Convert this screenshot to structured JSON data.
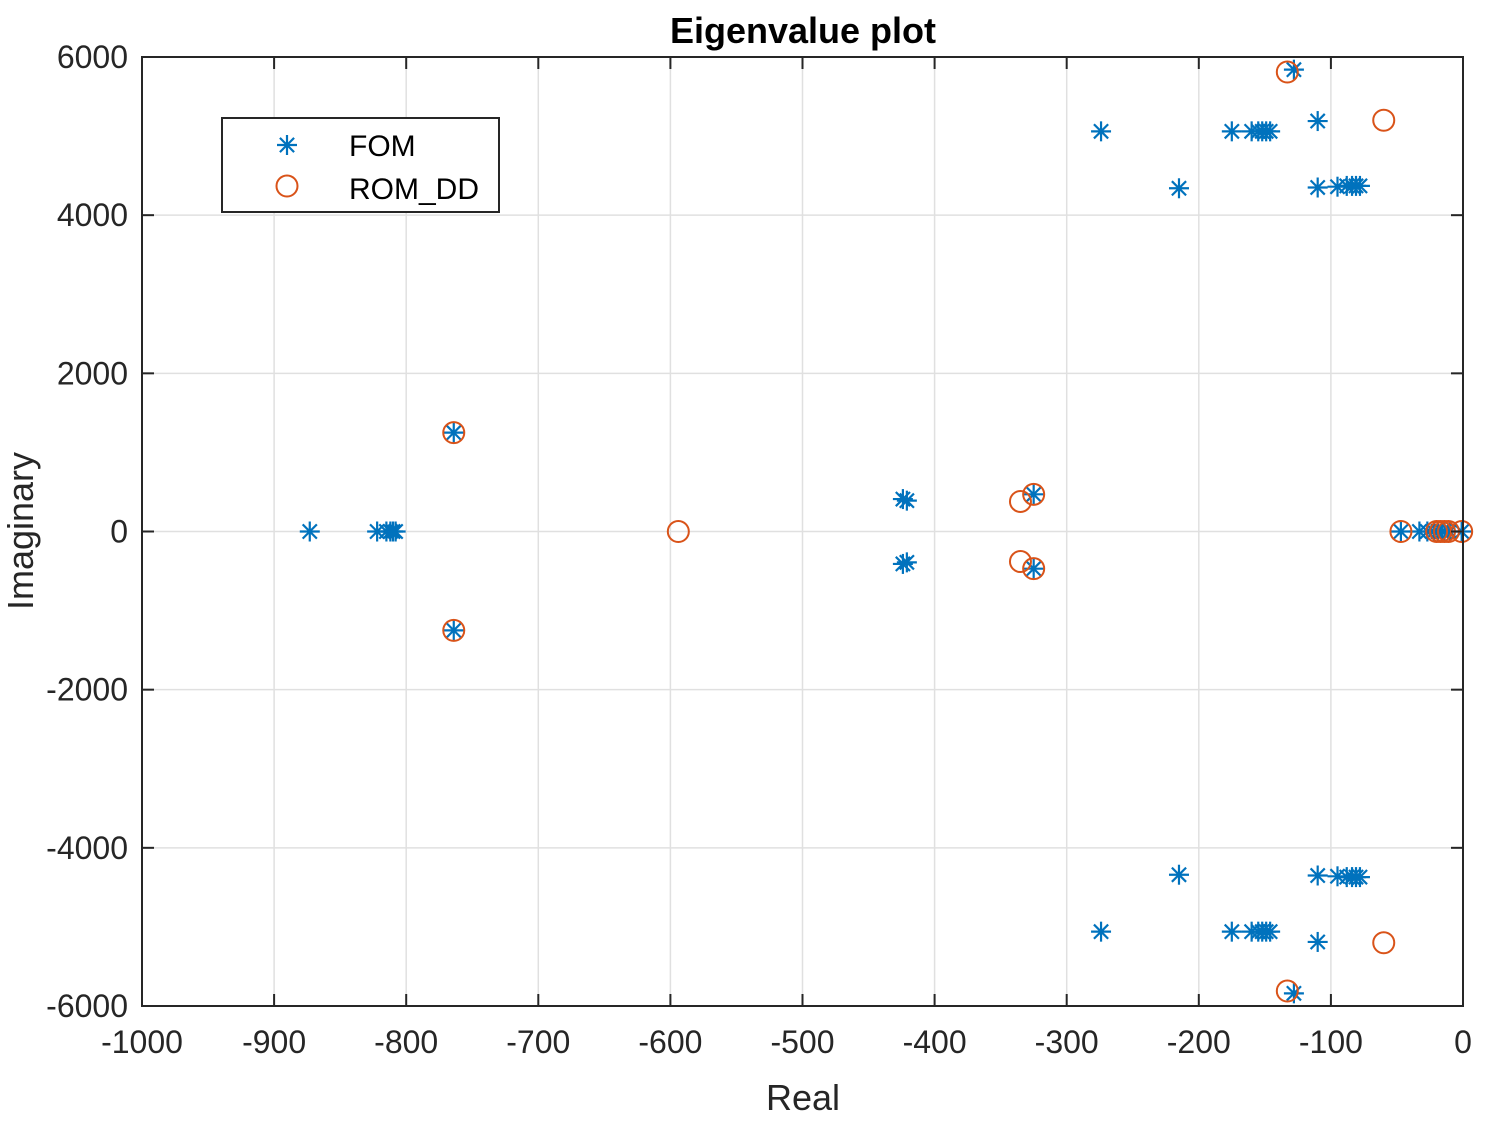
{
  "chart_data": {
    "type": "scatter",
    "title": "Eigenvalue plot",
    "xlabel": "Real",
    "ylabel": "Imaginary",
    "xlim": [
      -1000,
      0
    ],
    "ylim": [
      -6000,
      6000
    ],
    "xticks": [
      -1000,
      -900,
      -800,
      -700,
      -600,
      -500,
      -400,
      -300,
      -200,
      -100,
      0
    ],
    "yticks": [
      -6000,
      -4000,
      -2000,
      0,
      2000,
      4000,
      6000
    ],
    "grid": true,
    "legend_position": "top-left",
    "colors": {
      "FOM": "#0072BD",
      "ROM_DD": "#D95319",
      "grid": "#E0E0E0",
      "axis": "#262626"
    },
    "series": [
      {
        "name": "FOM",
        "marker": "asterisk",
        "points": [
          [
            -873,
            0
          ],
          [
            -822,
            0
          ],
          [
            -815,
            0
          ],
          [
            -812,
            0
          ],
          [
            -810,
            0
          ],
          [
            -808,
            0
          ],
          [
            -764,
            1250
          ],
          [
            -764,
            -1250
          ],
          [
            -424,
            410
          ],
          [
            -421,
            390
          ],
          [
            -424,
            -410
          ],
          [
            -421,
            -390
          ],
          [
            -325,
            470
          ],
          [
            -325,
            -470
          ],
          [
            -274,
            5060
          ],
          [
            -274,
            -5060
          ],
          [
            -215,
            4340
          ],
          [
            -215,
            -4340
          ],
          [
            -175,
            5060
          ],
          [
            -160,
            5060
          ],
          [
            -155,
            5060
          ],
          [
            -152,
            5060
          ],
          [
            -149,
            5060
          ],
          [
            -146,
            5060
          ],
          [
            -175,
            -5060
          ],
          [
            -160,
            -5060
          ],
          [
            -155,
            -5060
          ],
          [
            -152,
            -5060
          ],
          [
            -149,
            -5060
          ],
          [
            -146,
            -5060
          ],
          [
            -128,
            5840
          ],
          [
            -128,
            -5840
          ],
          [
            -110,
            5190
          ],
          [
            -110,
            -5190
          ],
          [
            -110,
            4350
          ],
          [
            -95,
            4360
          ],
          [
            -88,
            4370
          ],
          [
            -84,
            4370
          ],
          [
            -81,
            4370
          ],
          [
            -78,
            4370
          ],
          [
            -110,
            -4350
          ],
          [
            -95,
            -4360
          ],
          [
            -88,
            -4370
          ],
          [
            -84,
            -4370
          ],
          [
            -81,
            -4370
          ],
          [
            -78,
            -4370
          ],
          [
            -47,
            0
          ],
          [
            -33,
            0
          ],
          [
            -27,
            0
          ],
          [
            -22,
            0
          ],
          [
            -19,
            0
          ],
          [
            -16,
            0
          ],
          [
            -14,
            0
          ],
          [
            -10,
            0
          ],
          [
            -1,
            0
          ]
        ]
      },
      {
        "name": "ROM_DD",
        "marker": "circle",
        "points": [
          [
            -764,
            1250
          ],
          [
            -764,
            -1250
          ],
          [
            -594,
            0
          ],
          [
            -335,
            380
          ],
          [
            -335,
            -380
          ],
          [
            -325,
            470
          ],
          [
            -325,
            -470
          ],
          [
            -133,
            5810
          ],
          [
            -133,
            -5810
          ],
          [
            -60,
            5200
          ],
          [
            -60,
            -5200
          ],
          [
            -47,
            0
          ],
          [
            -20,
            0
          ],
          [
            -17,
            0
          ],
          [
            -14,
            0
          ],
          [
            -11,
            0
          ],
          [
            -1,
            0
          ]
        ]
      }
    ]
  }
}
